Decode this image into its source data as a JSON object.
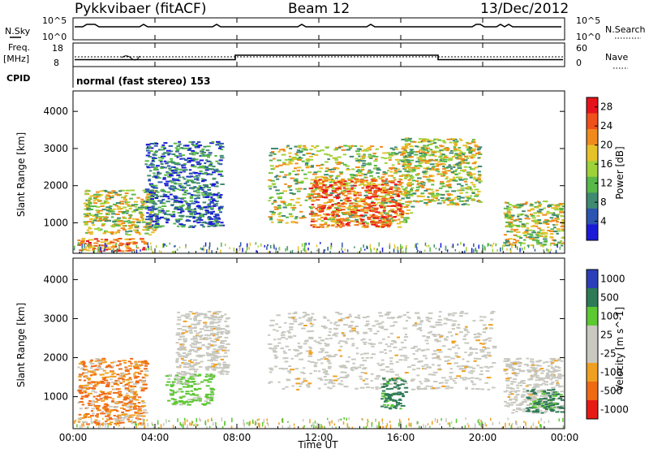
{
  "header": {
    "station": "Pykkvibaer (fitACF)",
    "beam": "Beam 12",
    "date": "13/Dec/2012"
  },
  "strip": {
    "nsky_label": "N.Sky",
    "nsearch_label": "N.Search",
    "noise_ticks_left": [
      "10^5",
      "10^0"
    ],
    "noise_ticks_right": [
      "10^5",
      "10^0"
    ],
    "freq_label": "Freq.",
    "freq_unit": "[MHz]",
    "freq_ticks": [
      "18",
      "8"
    ],
    "nave_label": "Nave",
    "nave_ticks": [
      "60",
      "0"
    ],
    "cpid_label": "CPID",
    "cpid_text": "normal (fast stereo) 153"
  },
  "colors": {
    "axis": "#000000",
    "noise_trace": "#000000"
  },
  "chart_data": [
    {
      "type": "heatmap",
      "title": "",
      "xlabel": "",
      "ylabel": "Slant Range [km]",
      "xlim": [
        "00:00",
        "24:00"
      ],
      "ylim": [
        180,
        4550
      ],
      "yticks": [
        "1000",
        "2000",
        "3000",
        "4000"
      ],
      "colorbar": {
        "label": "Power [dB]",
        "ticks": [
          "4",
          "8",
          "12",
          "16",
          "20",
          "24",
          "28"
        ],
        "range": [
          0,
          30
        ],
        "colors": [
          "#1a1ad8",
          "#2b55b0",
          "#3f8a70",
          "#58b848",
          "#9ed23a",
          "#e6c22a",
          "#f08a1c",
          "#f0501a",
          "#e6141a"
        ]
      },
      "echo_regions": [
        {
          "start_hr": 0.2,
          "end_hr": 3.5,
          "range_min_km": 250,
          "range_max_km": 600,
          "level": "high"
        },
        {
          "start_hr": 0.5,
          "end_hr": 4.0,
          "range_min_km": 700,
          "range_max_km": 1900,
          "level": "medium"
        },
        {
          "start_hr": 3.5,
          "end_hr": 7.2,
          "range_min_km": 900,
          "range_max_km": 3200,
          "level": "low"
        },
        {
          "start_hr": 9.5,
          "end_hr": 16.5,
          "range_min_km": 1000,
          "range_max_km": 3100,
          "level": "medium"
        },
        {
          "start_hr": 11.5,
          "end_hr": 16.0,
          "range_min_km": 900,
          "range_max_km": 2200,
          "level": "high"
        },
        {
          "start_hr": 16.0,
          "end_hr": 19.8,
          "range_min_km": 1500,
          "range_max_km": 3300,
          "level": "medium"
        },
        {
          "start_hr": 21.0,
          "end_hr": 23.9,
          "range_min_km": 400,
          "range_max_km": 1600,
          "level": "medium"
        }
      ]
    },
    {
      "type": "heatmap",
      "title": "",
      "xlabel": "Time UT",
      "ylabel": "Slant Range [km]",
      "xlim": [
        "00:00",
        "24:00"
      ],
      "xticks": [
        "00:00",
        "04:00",
        "08:00",
        "12:00",
        "16:00",
        "20:00",
        "00:00"
      ],
      "ylim": [
        180,
        4550
      ],
      "yticks": [
        "1000",
        "2000",
        "3000",
        "4000"
      ],
      "colorbar": {
        "label": "Velocity [m s^-1]",
        "ticks": [
          "1000",
          "500",
          "100",
          "25",
          "-25",
          "-100",
          "-500",
          "-1000"
        ],
        "colors": [
          "#2a3fb8",
          "#2e7a56",
          "#5cc832",
          "#c8c8c0",
          "#c8c8c0",
          "#f0a020",
          "#f06a14",
          "#e81a14"
        ]
      },
      "echo_regions": [
        {
          "start_hr": 0.2,
          "end_hr": 3.5,
          "range_min_km": 300,
          "range_max_km": 2000,
          "level": "negative"
        },
        {
          "start_hr": 4.5,
          "end_hr": 6.8,
          "range_min_km": 800,
          "range_max_km": 1600,
          "level": "low-positive"
        },
        {
          "start_hr": 5.0,
          "end_hr": 7.5,
          "range_min_km": 1600,
          "range_max_km": 3200,
          "level": "near-zero"
        },
        {
          "start_hr": 9.5,
          "end_hr": 20.5,
          "range_min_km": 1200,
          "range_max_km": 3200,
          "level": "near-zero"
        },
        {
          "start_hr": 15.0,
          "end_hr": 16.2,
          "range_min_km": 700,
          "range_max_km": 1500,
          "level": "positive"
        },
        {
          "start_hr": 21.0,
          "end_hr": 23.8,
          "range_min_km": 600,
          "range_max_km": 2000,
          "level": "near-zero"
        },
        {
          "start_hr": 22.0,
          "end_hr": 23.8,
          "range_min_km": 600,
          "range_max_km": 1200,
          "level": "positive"
        }
      ]
    }
  ]
}
